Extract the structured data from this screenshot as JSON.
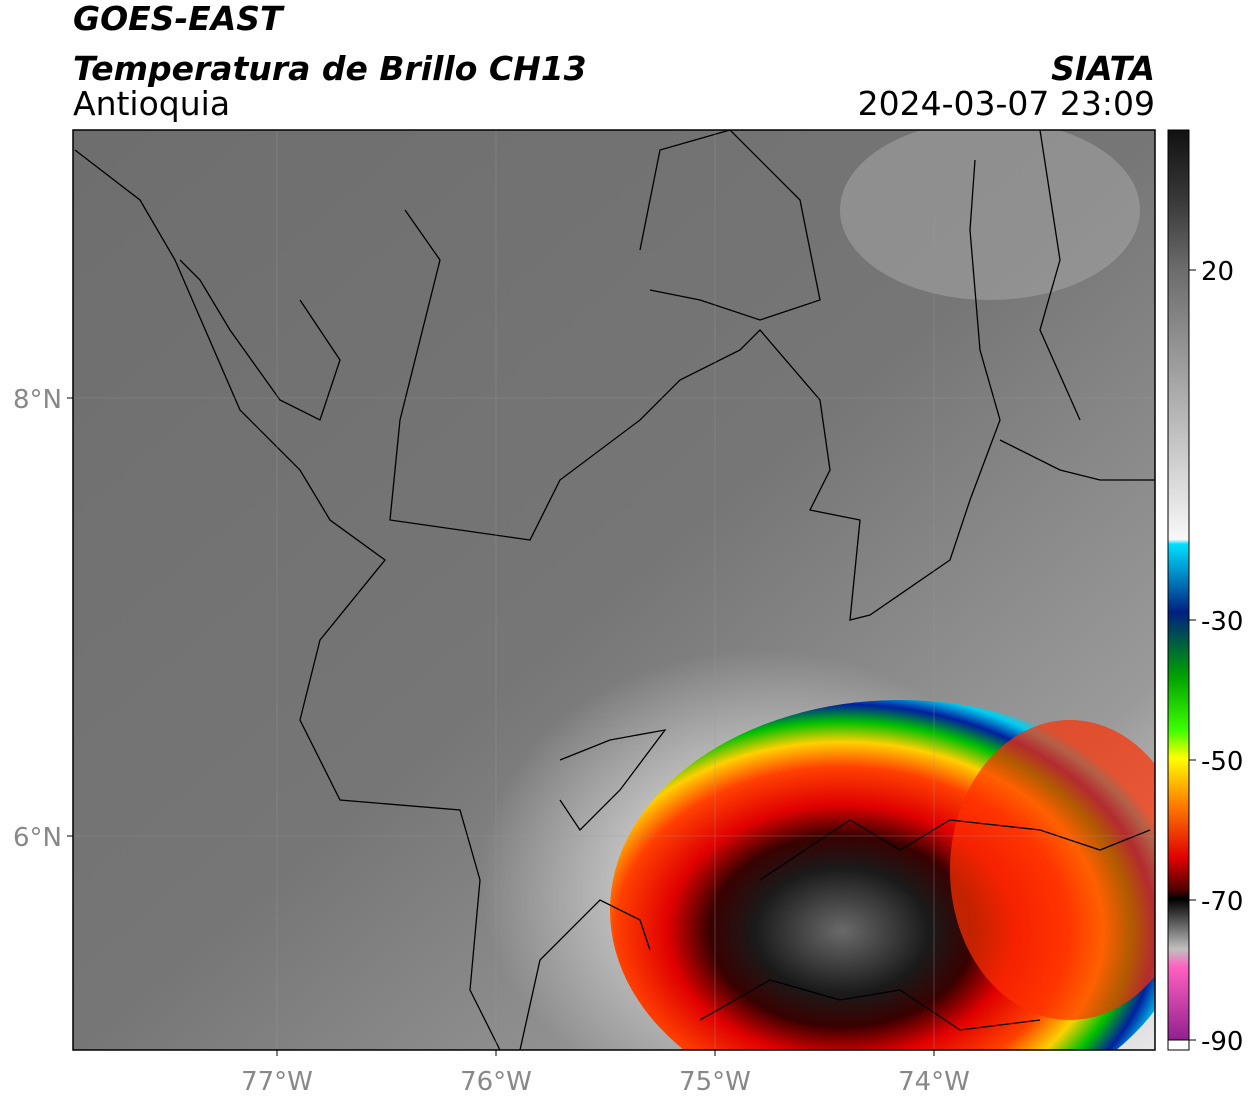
{
  "header": {
    "title": "GOES-EAST",
    "subtitle": "Temperatura de Brillo CH13",
    "region": "Antioquia",
    "agency": "SIATA",
    "datetime": "2024-03-07 23:09"
  },
  "map": {
    "lon_ticks": [
      {
        "value": -77,
        "label": "77°W"
      },
      {
        "value": -76,
        "label": "76°W"
      },
      {
        "value": -75,
        "label": "75°W"
      },
      {
        "value": -74,
        "label": "74°W"
      }
    ],
    "lat_ticks": [
      {
        "value": 8,
        "label": "8°N"
      },
      {
        "value": 6,
        "label": "6°N"
      }
    ]
  },
  "colorbar": {
    "range": [
      -90,
      40
    ],
    "ticks": [
      20,
      -30,
      -50,
      -70,
      -90
    ]
  }
}
